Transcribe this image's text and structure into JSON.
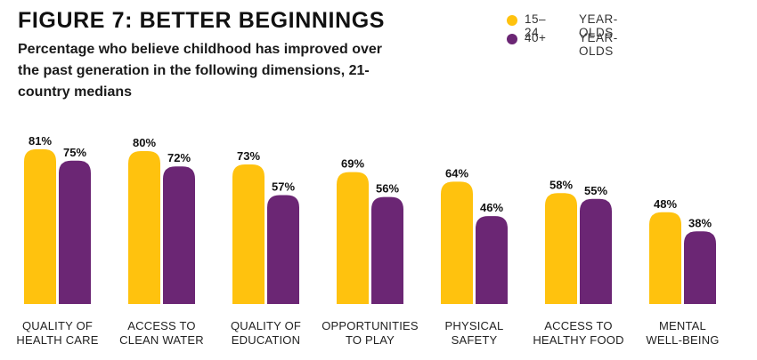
{
  "title": "FIGURE 7: BETTER BEGINNINGS",
  "subtitle": "Percentage who believe childhood has improved over the past generation in the following dimensions, 21-country medians",
  "legend": [
    {
      "range": "15–24",
      "unit": "YEAR-OLDS",
      "color": "#FFC20E"
    },
    {
      "range": "40+",
      "unit": "YEAR-OLDS",
      "color": "#6B2674"
    }
  ],
  "chart_data": {
    "type": "bar",
    "title": "FIGURE 7: BETTER BEGINNINGS",
    "subtitle": "Percentage who believe childhood has improved over the past generation in the following dimensions, 21-country medians",
    "categories": [
      [
        "QUALITY OF",
        "HEALTH CARE"
      ],
      [
        "ACCESS TO",
        "CLEAN WATER"
      ],
      [
        "QUALITY OF",
        "EDUCATION"
      ],
      [
        "OPPORTUNITIES",
        "TO PLAY"
      ],
      [
        "PHYSICAL",
        "SAFETY"
      ],
      [
        "ACCESS TO",
        "HEALTHY FOOD"
      ],
      [
        "MENTAL",
        "WELL-BEING"
      ]
    ],
    "series": [
      {
        "name": "15–24 YEAR-OLDS",
        "color": "#FFC20E",
        "values": [
          81,
          80,
          73,
          69,
          64,
          58,
          48
        ]
      },
      {
        "name": "40+ YEAR-OLDS",
        "color": "#6B2674",
        "values": [
          75,
          72,
          57,
          56,
          46,
          55,
          38
        ]
      }
    ],
    "value_suffix": "%",
    "ylim": [
      0,
      100
    ],
    "grid": false,
    "legend_position": "top-right"
  }
}
